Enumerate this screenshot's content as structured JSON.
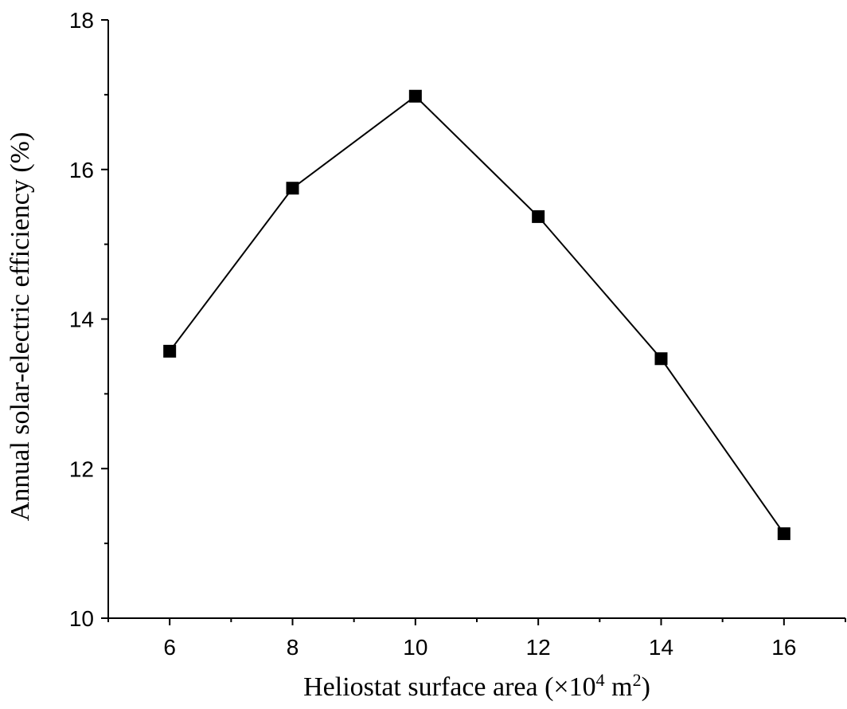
{
  "chart_data": {
    "type": "line",
    "xlabel": {
      "prefix": "Heliostat surface area (×10",
      "exp1": "4",
      "middle": " m",
      "exp2": "2",
      "suffix": ")"
    },
    "ylabel": "Annual solar-electric efficiency (%)",
    "xlim": [
      5,
      17
    ],
    "ylim": [
      10,
      18
    ],
    "x_ticks": [
      6,
      8,
      10,
      12,
      14,
      16
    ],
    "x_minor_ticks": [
      5,
      7,
      9,
      11,
      13,
      15,
      17
    ],
    "y_ticks": [
      10,
      12,
      14,
      16,
      18
    ],
    "y_minor_ticks": [
      11,
      13,
      15,
      17
    ],
    "x_tick_labels": [
      "6",
      "8",
      "10",
      "12",
      "14",
      "16"
    ],
    "y_tick_labels": [
      "10",
      "12",
      "14",
      "16",
      "18"
    ],
    "grid": false,
    "marker": "square",
    "series_color": "#000000",
    "series": [
      {
        "x": [
          6,
          8,
          10,
          12,
          14,
          16
        ],
        "y": [
          13.57,
          15.75,
          16.98,
          15.37,
          13.47,
          11.13
        ]
      }
    ]
  }
}
